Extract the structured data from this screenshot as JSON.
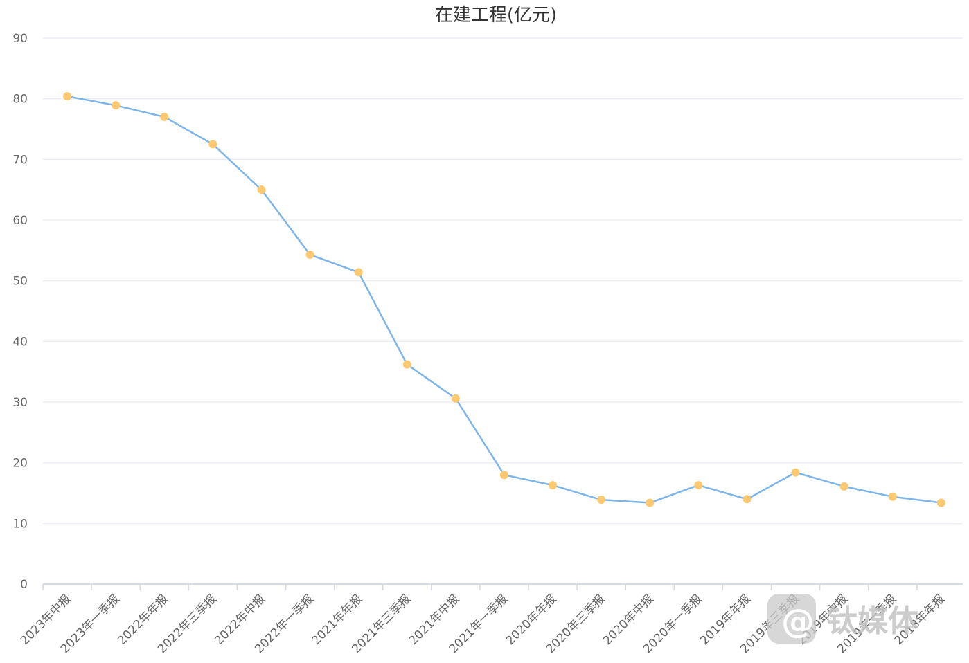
{
  "chart_data": {
    "type": "line",
    "title": "在建工程(亿元)",
    "xlabel": "",
    "ylabel": "",
    "ylim": [
      0,
      90
    ],
    "yticks": [
      0,
      10,
      20,
      30,
      40,
      50,
      60,
      70,
      80,
      90
    ],
    "grid": true,
    "categories": [
      "2023年中报",
      "2023年一季报",
      "2022年年报",
      "2022年三季报",
      "2022年中报",
      "2022年一季报",
      "2021年年报",
      "2021年三季报",
      "2021年中报",
      "2021年一季报",
      "2020年年报",
      "2020年三季报",
      "2020年中报",
      "2020年一季报",
      "2019年年报",
      "2019年三季报",
      "2019年中报",
      "2019年一季报",
      "2018年年报"
    ],
    "series": [
      {
        "values": [
          80.4,
          78.9,
          77.0,
          72.5,
          65.0,
          54.3,
          51.4,
          36.2,
          30.6,
          18.0,
          16.3,
          13.9,
          13.4,
          16.3,
          14.0,
          18.4,
          16.1,
          14.4,
          13.4
        ],
        "line_color": "#7db5e8",
        "marker_color": "#fcc870"
      }
    ]
  },
  "watermark": {
    "logo_text": "钛媒体"
  }
}
